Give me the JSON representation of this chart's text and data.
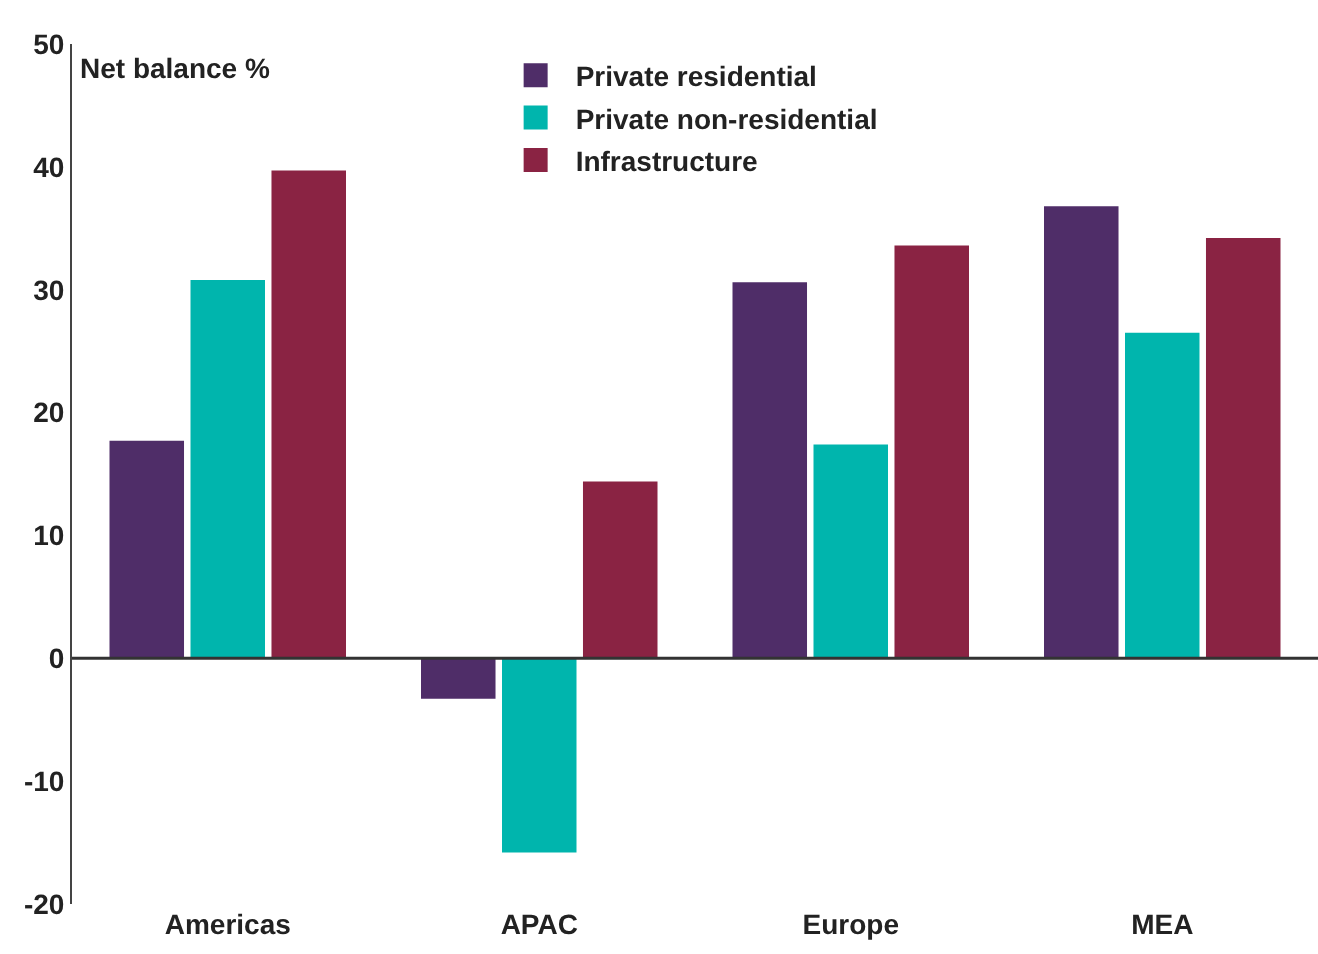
{
  "chart_data": {
    "type": "bar",
    "ylabel": "Net balance %",
    "categories": [
      "Americas",
      "APAC",
      "Europe",
      "MEA"
    ],
    "series": [
      {
        "name": "Private residential",
        "color": "#4f2d68",
        "values": [
          17.7,
          -3.3,
          30.6,
          36.8
        ]
      },
      {
        "name": "Private non-residential",
        "color": "#00b5ad",
        "values": [
          30.8,
          -15.8,
          17.4,
          26.5
        ]
      },
      {
        "name": "Infrastructure",
        "color": "#8a2343",
        "values": [
          39.7,
          14.4,
          33.6,
          34.2
        ]
      }
    ],
    "ylim": [
      -20,
      50
    ],
    "yticks": [
      -20,
      -10,
      0,
      10,
      20,
      30,
      40,
      50
    ],
    "legend": "top"
  }
}
